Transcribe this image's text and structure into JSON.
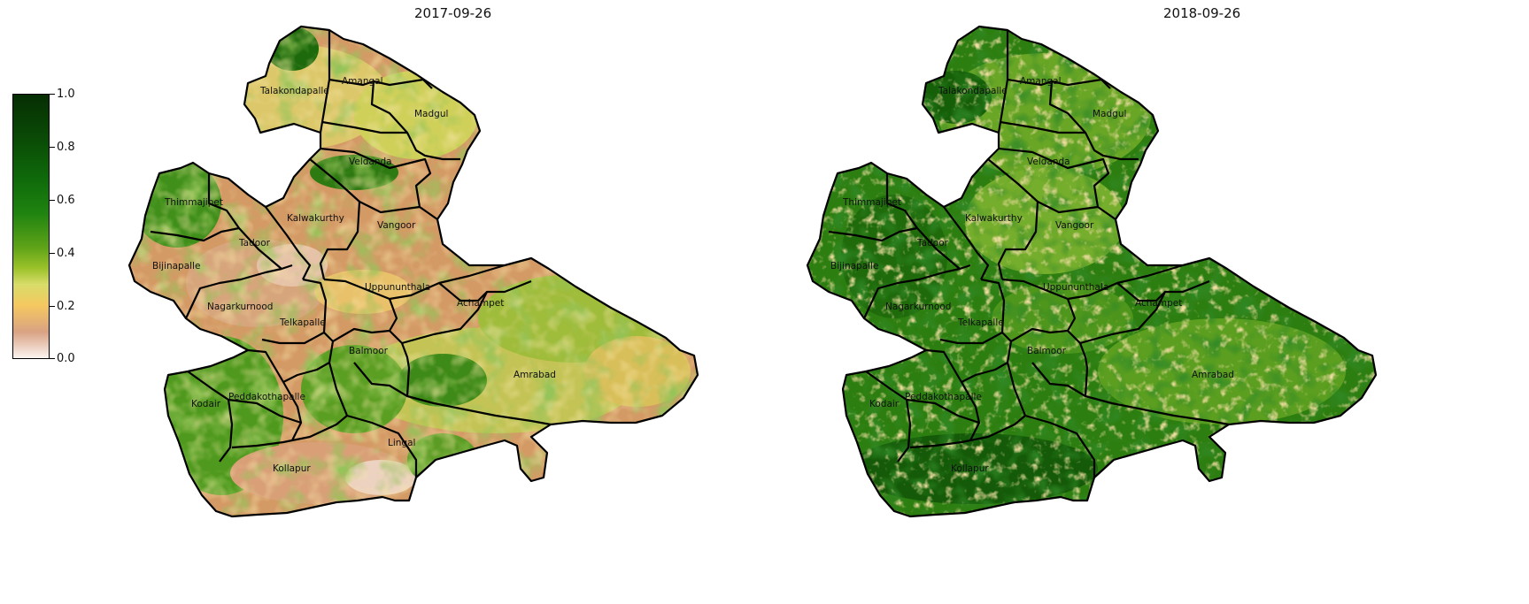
{
  "panels": [
    {
      "title": "2017-09-26"
    },
    {
      "title": "2018-09-26"
    }
  ],
  "colorbar": {
    "ticks": [
      "1.0",
      "0.8",
      "0.6",
      "0.4",
      "0.2",
      "0.0"
    ],
    "colormap_colors": [
      "#fbf3f0",
      "#d9a283",
      "#f5c860",
      "#9cc22a",
      "#1f8310",
      "#062e03"
    ]
  },
  "mandals": [
    "Talakondapalle",
    "Amangal",
    "Madgul",
    "Veldanda",
    "Thimmajipet",
    "Kalwakurthy",
    "Vangoor",
    "Tadoor",
    "Bijinapalle",
    "Uppununthala",
    "Achampet",
    "Nagarkurnood",
    "Telkapalle",
    "Balmoor",
    "Amrabad",
    "Kodair",
    "Peddakothapalle",
    "Lingal",
    "Kollapur"
  ],
  "left_labels": [
    "Talakondapalle",
    "Amangal",
    "Madgul",
    "Veldanda",
    "Thimmajipet",
    "Kalwakurthy",
    "Vangoor",
    "Tadoor",
    "Bijinapalle",
    "Uppununthala",
    "Achampet",
    "Nagarkurnood",
    "Telkapalle",
    "Balmoor",
    "Amrabad",
    "Kodair",
    "Peddakothapalle",
    "Lingal",
    "Kollapur"
  ],
  "right_labels": [
    "Talakondapalle",
    "Amangal",
    "Madgul",
    "Veldanda",
    "Thimmajipet",
    "Kalwakurthy",
    "Vangoor",
    "Tadoor",
    "Bijinapalle",
    "Uppununthala",
    "Achampet",
    "Nagarkurnood",
    "Telkapalle",
    "Balmoor",
    "Amrabad",
    "Kodair",
    "Peddakothapalle",
    "Kollapur"
  ],
  "panel_colors": {
    "left_base": "#d59a6a",
    "right_base": "#2f7d12"
  }
}
